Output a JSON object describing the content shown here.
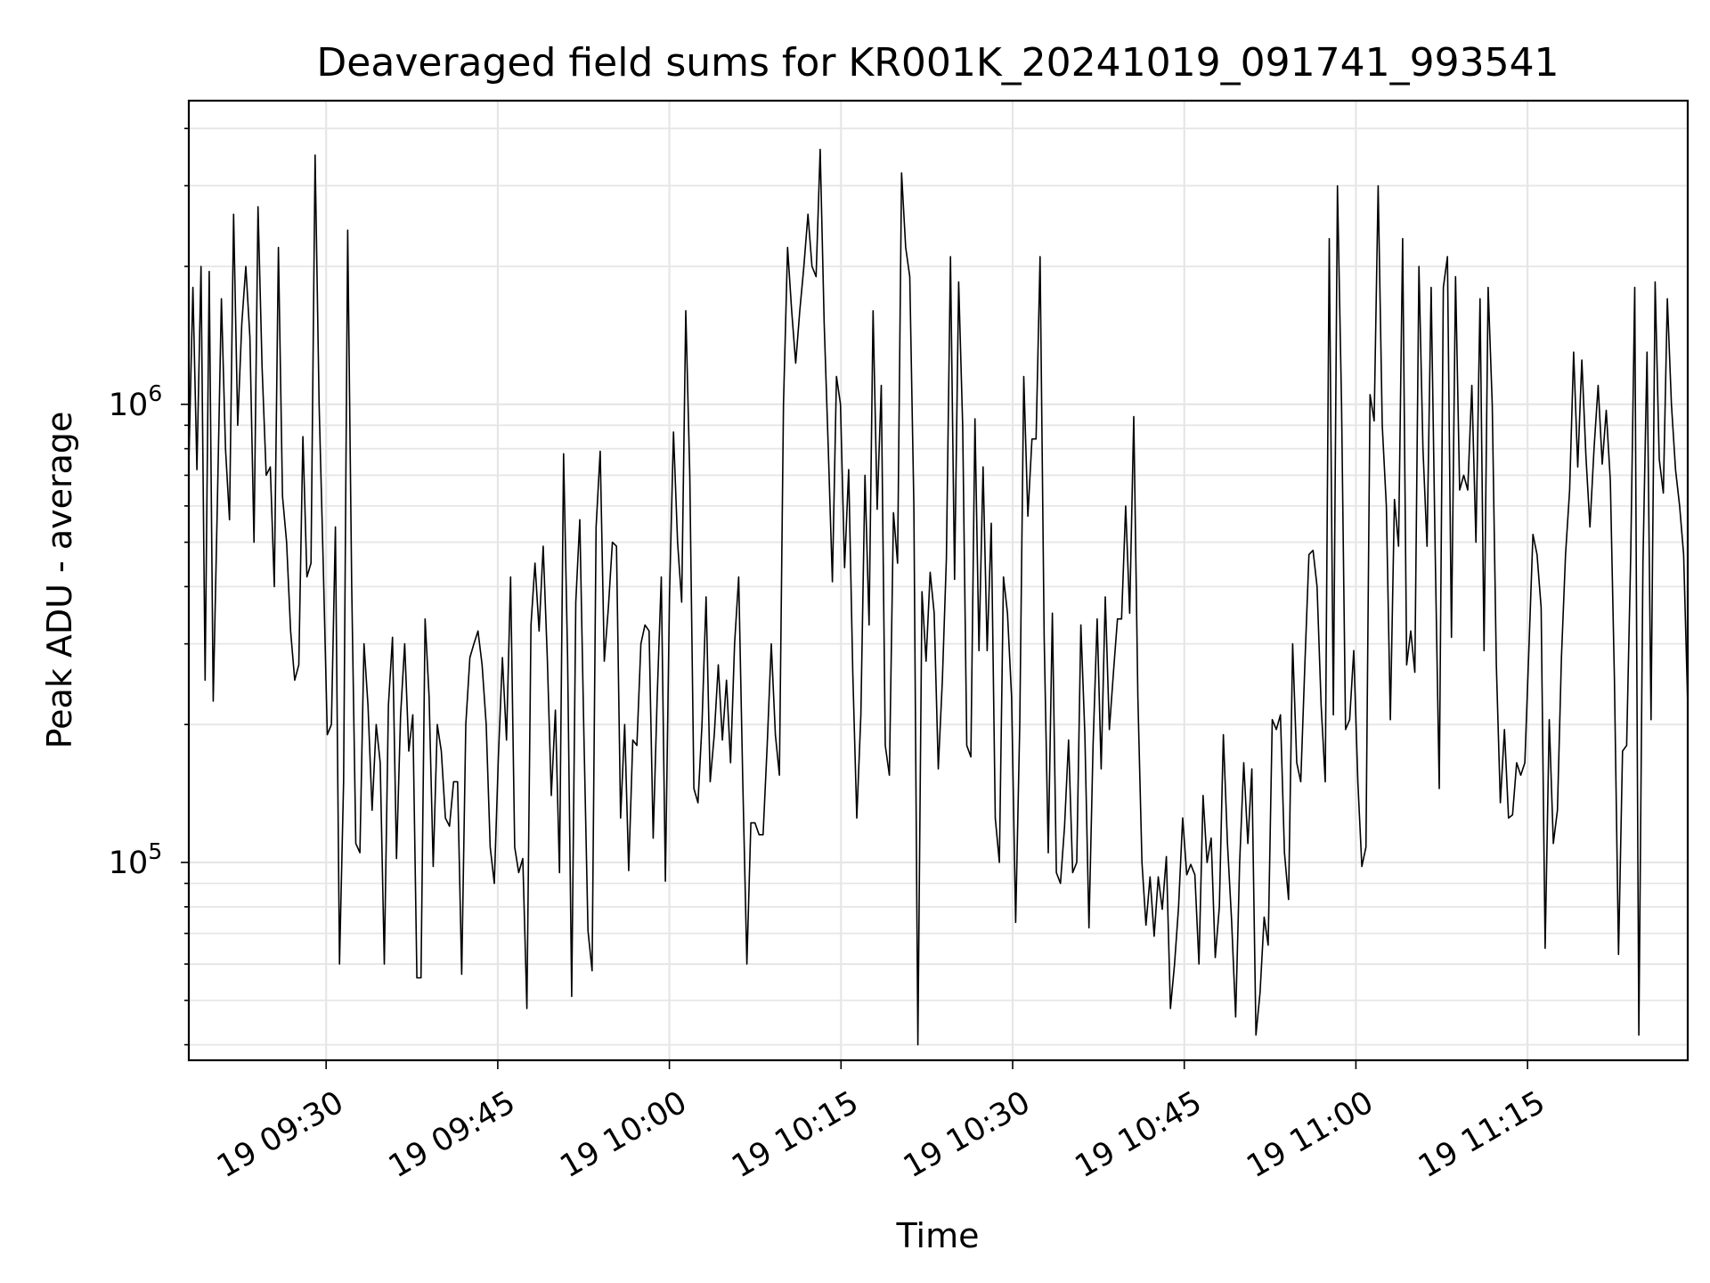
{
  "chart_data": {
    "type": "line",
    "title": "Deaveraged field sums for KR001K_20241019_091741_993541",
    "xlabel": "Time",
    "ylabel": "Peak ADU - average",
    "yscale": "log",
    "ylim": [
      37000,
      4600000
    ],
    "xlim": [
      "2024-10-19 09:18:00",
      "2024-10-19 11:29:00"
    ],
    "grid": true,
    "line_color": "#000000",
    "grid_color": "#e6e6e6",
    "x_ticks": [
      "2024-10-19 09:30",
      "2024-10-19 09:45",
      "2024-10-19 10:00",
      "2024-10-19 10:15",
      "2024-10-19 10:30",
      "2024-10-19 10:45",
      "2024-10-19 11:00",
      "2024-10-19 11:15"
    ],
    "x_tick_labels": [
      "19 09:30",
      "19 09:45",
      "19 10:00",
      "19 10:15",
      "19 10:30",
      "19 10:45",
      "19 11:00",
      "19 11:15"
    ],
    "y_ticks": [
      {
        "value": 100000,
        "base": "10",
        "exp": "5"
      },
      {
        "value": 1000000,
        "base": "10",
        "exp": "6"
      }
    ],
    "series": [
      {
        "time_start": "2024-10-19 09:18:00",
        "time_end": "2024-10-19 11:29:00",
        "values": [
          740000,
          1800000,
          720000,
          2000000,
          250000,
          1950000,
          225000,
          600000,
          1700000,
          800000,
          560000,
          2600000,
          900000,
          1500000,
          2000000,
          1400000,
          500000,
          2700000,
          1200000,
          700000,
          730000,
          400000,
          2200000,
          630000,
          500000,
          320000,
          250000,
          270000,
          850000,
          420000,
          450000,
          3500000,
          1000000,
          450000,
          190000,
          200000,
          540000,
          60000,
          150000,
          2400000,
          400000,
          110000,
          105000,
          300000,
          220000,
          130000,
          200000,
          165000,
          60000,
          220000,
          310000,
          102000,
          210000,
          300000,
          175000,
          210000,
          56000,
          56000,
          340000,
          230000,
          98000,
          200000,
          175000,
          125000,
          120000,
          150000,
          150000,
          57000,
          200000,
          280000,
          300000,
          320000,
          270000,
          200000,
          108000,
          90000,
          170000,
          280000,
          185000,
          420000,
          108000,
          95000,
          102000,
          48000,
          330000,
          450000,
          320000,
          490000,
          280000,
          140000,
          215000,
          95000,
          780000,
          280000,
          51000,
          370000,
          560000,
          190000,
          71000,
          58000,
          540000,
          790000,
          275000,
          360000,
          500000,
          490000,
          125000,
          200000,
          96000,
          185000,
          180000,
          300000,
          330000,
          320000,
          113000,
          230000,
          420000,
          91000,
          380000,
          870000,
          500000,
          370000,
          1600000,
          700000,
          145000,
          135000,
          200000,
          380000,
          150000,
          190000,
          270000,
          185000,
          250000,
          165000,
          300000,
          420000,
          150000,
          60000,
          122000,
          122000,
          115000,
          115000,
          180000,
          300000,
          190000,
          155000,
          1000000,
          2200000,
          1600000,
          1230000,
          1600000,
          2000000,
          2600000,
          2000000,
          1900000,
          3600000,
          1500000,
          800000,
          410000,
          1150000,
          1000000,
          440000,
          720000,
          260000,
          125000,
          210000,
          700000,
          330000,
          1600000,
          590000,
          1100000,
          180000,
          155000,
          580000,
          450000,
          3200000,
          2200000,
          1900000,
          600000,
          40000,
          390000,
          275000,
          430000,
          350000,
          160000,
          250000,
          460000,
          2100000,
          415000,
          1850000,
          900000,
          180000,
          170000,
          930000,
          290000,
          730000,
          290000,
          550000,
          125000,
          100000,
          420000,
          350000,
          230000,
          74000,
          200000,
          1150000,
          570000,
          840000,
          840000,
          2100000,
          310000,
          105000,
          350000,
          95000,
          90000,
          120000,
          185000,
          95000,
          100000,
          330000,
          190000,
          72000,
          180000,
          340000,
          160000,
          380000,
          195000,
          260000,
          340000,
          340000,
          600000,
          350000,
          940000,
          230000,
          100000,
          73000,
          93000,
          69000,
          93000,
          79000,
          103000,
          48000,
          60000,
          80000,
          125000,
          94000,
          99000,
          94000,
          60000,
          140000,
          100000,
          113000,
          62000,
          80000,
          190000,
          110000,
          75000,
          46000,
          100000,
          165000,
          110000,
          160000,
          42000,
          52000,
          76000,
          66000,
          205000,
          195000,
          210000,
          105000,
          83000,
          300000,
          165000,
          150000,
          270000,
          470000,
          480000,
          400000,
          220000,
          150000,
          2300000,
          210000,
          3000000,
          1000000,
          195000,
          205000,
          290000,
          150000,
          98000,
          108000,
          1050000,
          920000,
          3000000,
          900000,
          600000,
          205000,
          620000,
          490000,
          2300000,
          270000,
          320000,
          260000,
          2000000,
          800000,
          490000,
          1800000,
          470000,
          145000,
          1800000,
          2100000,
          310000,
          1900000,
          650000,
          700000,
          650000,
          1100000,
          500000,
          1700000,
          290000,
          1800000,
          1000000,
          270000,
          135000,
          195000,
          125000,
          127000,
          165000,
          155000,
          165000,
          290000,
          520000,
          470000,
          360000,
          65000,
          205000,
          110000,
          130000,
          280000,
          470000,
          650000,
          1300000,
          730000,
          1250000,
          770000,
          540000,
          800000,
          1100000,
          740000,
          970000,
          680000,
          250000,
          63000,
          175000,
          180000,
          470000,
          1800000,
          42000,
          450000,
          1300000,
          205000,
          1850000,
          760000,
          640000,
          1700000,
          1000000,
          720000,
          600000,
          470000,
          220000
        ]
      }
    ]
  }
}
